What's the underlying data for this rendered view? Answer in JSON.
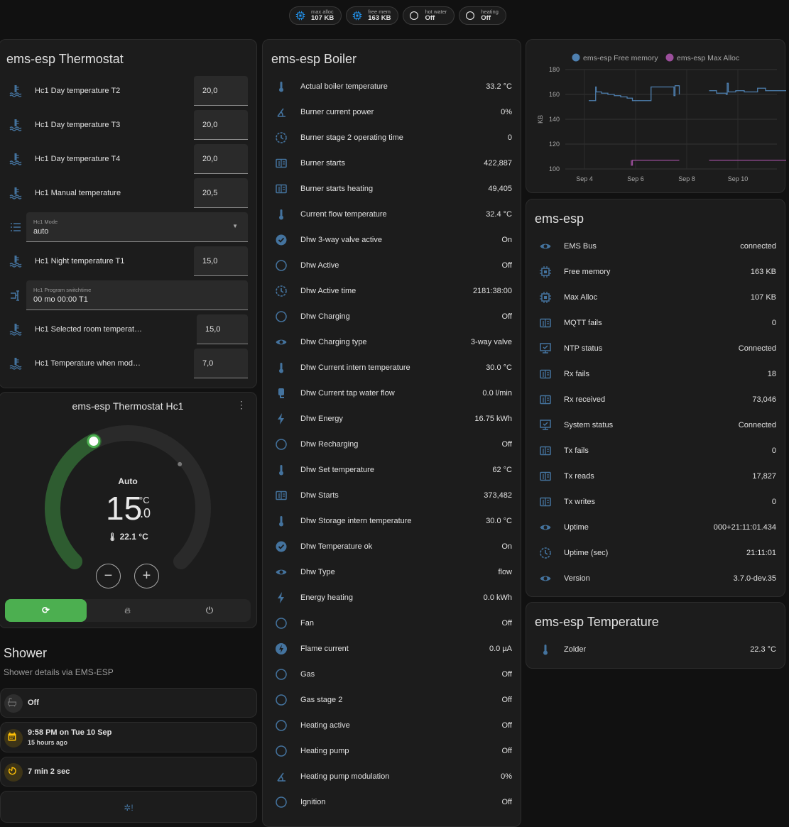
{
  "chips": [
    {
      "icon": "chip-icon",
      "label": "max alloc",
      "value": "107 KB",
      "color": "#2196f3"
    },
    {
      "icon": "chip-icon",
      "label": "free mem",
      "value": "163 KB",
      "color": "#2196f3"
    },
    {
      "icon": "circle-outline-icon",
      "label": "hot water",
      "value": "Off",
      "color": "#e1e1e1"
    },
    {
      "icon": "circle-outline-icon",
      "label": "heating",
      "value": "Off",
      "color": "#e1e1e1"
    }
  ],
  "thermostat": {
    "title": "ems-esp Thermostat",
    "rows": [
      {
        "type": "number",
        "icon": "water-thermometer-icon",
        "label": "Hc1 Day temperature T2",
        "value": "20,0"
      },
      {
        "type": "number",
        "icon": "water-thermometer-icon",
        "label": "Hc1 Day temperature T3",
        "value": "20,0"
      },
      {
        "type": "number",
        "icon": "water-thermometer-icon",
        "label": "Hc1 Day temperature T4",
        "value": "20,0"
      },
      {
        "type": "number",
        "icon": "water-thermometer-icon",
        "label": "Hc1 Manual temperature",
        "value": "20,5"
      },
      {
        "type": "select",
        "icon": "list-icon",
        "label": "Hc1 Mode",
        "value": "auto"
      },
      {
        "type": "number",
        "icon": "water-thermometer-icon",
        "label": "Hc1 Night temperature T1",
        "value": "15,0"
      },
      {
        "type": "text",
        "icon": "switch-time-icon",
        "label": "Hc1 Program switchtime",
        "value": "00 mo 00:00 T1"
      },
      {
        "type": "number",
        "icon": "water-thermometer-icon",
        "label": "Hc1 Selected room temperat…",
        "value": "15,0"
      },
      {
        "type": "number",
        "icon": "water-thermometer-icon",
        "label": "Hc1 Temperature when mod…",
        "value": "7,0"
      }
    ]
  },
  "climate": {
    "title": "ems-esp Thermostat Hc1",
    "mode": "Auto",
    "target_int": "15",
    "target_dec": ".0",
    "unit": "°C",
    "target": 15.0,
    "current": "22.1 °C",
    "current_value": 22.1,
    "accent": "#4caf50",
    "modes": [
      {
        "name": "auto",
        "icon": "thermostat-auto-icon",
        "active": true
      },
      {
        "name": "heat",
        "icon": "fire-icon",
        "active": false
      },
      {
        "name": "off",
        "icon": "power-icon",
        "active": false
      }
    ]
  },
  "shower": {
    "title": "Shower",
    "subtitle": "Shower details via EMS-ESP",
    "items": [
      {
        "icon": "bathtub-icon",
        "primary": "Off",
        "secondary": "",
        "color": "#6f6f6f"
      },
      {
        "icon": "calendar-icon",
        "primary": "9:58 PM on Tue 10 Sep",
        "secondary": "15 hours ago",
        "color": "#ffc107"
      },
      {
        "icon": "timer-icon",
        "primary": "7 min 2 sec",
        "secondary": "",
        "color": "#ffc107"
      }
    ],
    "last_icon": "water-alert-icon"
  },
  "boiler": {
    "title": "ems-esp Boiler",
    "rows": [
      {
        "icon": "thermometer-icon",
        "label": "Actual boiler temperature",
        "value": "33.2 °C"
      },
      {
        "icon": "angle-icon",
        "label": "Burner current power",
        "value": "0%"
      },
      {
        "icon": "clock-icon",
        "label": "Burner stage 2 operating time",
        "value": "0"
      },
      {
        "icon": "counter-icon",
        "label": "Burner starts",
        "value": "422,887"
      },
      {
        "icon": "counter-icon",
        "label": "Burner starts heating",
        "value": "49,405"
      },
      {
        "icon": "thermometer-icon",
        "label": "Current flow temperature",
        "value": "32.4 °C"
      },
      {
        "icon": "check-circle-icon",
        "label": "Dhw 3-way valve active",
        "value": "On"
      },
      {
        "icon": "circle-outline-icon",
        "label": "Dhw Active",
        "value": "Off"
      },
      {
        "icon": "clock-icon",
        "label": "Dhw Active time",
        "value": "2181:38:00"
      },
      {
        "icon": "circle-outline-icon",
        "label": "Dhw Charging",
        "value": "Off"
      },
      {
        "icon": "eye-icon",
        "label": "Dhw Charging type",
        "value": "3-way valve"
      },
      {
        "icon": "thermometer-icon",
        "label": "Dhw Current intern temperature",
        "value": "30.0 °C"
      },
      {
        "icon": "water-pump-icon",
        "label": "Dhw Current tap water flow",
        "value": "0.0 l/min"
      },
      {
        "icon": "flash-icon",
        "label": "Dhw Energy",
        "value": "16.75 kWh"
      },
      {
        "icon": "circle-outline-icon",
        "label": "Dhw Recharging",
        "value": "Off"
      },
      {
        "icon": "thermometer-icon",
        "label": "Dhw Set temperature",
        "value": "62 °C"
      },
      {
        "icon": "counter-icon",
        "label": "Dhw Starts",
        "value": "373,482"
      },
      {
        "icon": "thermometer-icon",
        "label": "Dhw Storage intern temperature",
        "value": "30.0 °C"
      },
      {
        "icon": "check-circle-icon",
        "label": "Dhw Temperature ok",
        "value": "On"
      },
      {
        "icon": "eye-icon",
        "label": "Dhw Type",
        "value": "flow"
      },
      {
        "icon": "flash-icon",
        "label": "Energy heating",
        "value": "0.0 kWh"
      },
      {
        "icon": "circle-outline-icon",
        "label": "Fan",
        "value": "Off"
      },
      {
        "icon": "flash-circle-icon",
        "label": "Flame current",
        "value": "0.0 µA"
      },
      {
        "icon": "circle-outline-icon",
        "label": "Gas",
        "value": "Off"
      },
      {
        "icon": "circle-outline-icon",
        "label": "Gas stage 2",
        "value": "Off"
      },
      {
        "icon": "circle-outline-icon",
        "label": "Heating active",
        "value": "Off"
      },
      {
        "icon": "circle-outline-icon",
        "label": "Heating pump",
        "value": "Off"
      },
      {
        "icon": "angle-icon",
        "label": "Heating pump modulation",
        "value": "0%"
      },
      {
        "icon": "circle-outline-icon",
        "label": "Ignition",
        "value": "Off"
      }
    ]
  },
  "chart_data": {
    "type": "line",
    "ylabel": "KB",
    "ylim": [
      100,
      180
    ],
    "yticks": [
      "100",
      "120",
      "140",
      "160",
      "180"
    ],
    "xticks": [
      "Sep 4",
      "Sep 6",
      "Sep 8",
      "Sep 10"
    ],
    "grid": true,
    "legend": "top",
    "series": [
      {
        "name": "ems-esp Free memory",
        "color": "#4f80b0",
        "segments": [
          [
            [
              "Sep 4 04:00",
              155
            ],
            [
              "Sep 4 10:30",
              155
            ],
            [
              "Sep 4 10:30",
              166
            ],
            [
              "Sep 4 11:00",
              162
            ],
            [
              "Sep 4 16:00",
              161
            ],
            [
              "Sep 4 22:00",
              160
            ],
            [
              "Sep 5 04:00",
              159
            ],
            [
              "Sep 5 10:00",
              158
            ],
            [
              "Sep 5 16:00",
              157
            ],
            [
              "Sep 5 21:00",
              155
            ],
            [
              "Sep 6 14:00",
              155
            ],
            [
              "Sep 6 14:30",
              166
            ],
            [
              "Sep 7 12:00",
              166
            ],
            [
              "Sep 7 12:00",
              159
            ],
            [
              "Sep 7 13:00",
              167
            ],
            [
              "Sep 7 17:00",
              167
            ],
            [
              "Sep 7 17:00",
              160
            ]
          ],
          [
            [
              "Sep 8 21:00",
              163
            ],
            [
              "Sep 9 04:00",
              161
            ],
            [
              "Sep 9 12:00",
              161
            ],
            [
              "Sep 9 13:00",
              160
            ],
            [
              "Sep 9 14:00",
              169
            ],
            [
              "Sep 9 15:00",
              162
            ],
            [
              "Sep 9 22:00",
              163
            ],
            [
              "Sep 10 04:00",
              163
            ],
            [
              "Sep 10 06:00",
              162
            ],
            [
              "Sep 10 18:00",
              162
            ],
            [
              "Sep 10 18:30",
              165
            ],
            [
              "Sep 11 00:00",
              165
            ],
            [
              "Sep 11 02:00",
              163
            ],
            [
              "Sep 11 23:00",
              163
            ]
          ]
        ]
      },
      {
        "name": "ems-esp Max Alloc",
        "color": "#9c4f9c",
        "segments": [
          [
            [
              "Sep 5 20:00",
              107
            ],
            [
              "Sep 5 20:00",
              103
            ],
            [
              "Sep 5 21:00",
              107
            ],
            [
              "Sep 7 17:00",
              107
            ]
          ],
          [
            [
              "Sep 8 21:00",
              107
            ],
            [
              "Sep 11 23:00",
              107
            ]
          ]
        ]
      }
    ]
  },
  "system": {
    "title": "ems-esp",
    "rows": [
      {
        "icon": "eye-icon",
        "label": "EMS Bus",
        "value": "connected"
      },
      {
        "icon": "chip-icon",
        "label": "Free memory",
        "value": "163 KB"
      },
      {
        "icon": "chip-icon",
        "label": "Max Alloc",
        "value": "107 KB"
      },
      {
        "icon": "counter-icon",
        "label": "MQTT fails",
        "value": "0"
      },
      {
        "icon": "monitor-check-icon",
        "label": "NTP status",
        "value": "Connected"
      },
      {
        "icon": "counter-icon",
        "label": "Rx fails",
        "value": "18"
      },
      {
        "icon": "counter-icon",
        "label": "Rx received",
        "value": "73,046"
      },
      {
        "icon": "monitor-check-icon",
        "label": "System status",
        "value": "Connected"
      },
      {
        "icon": "counter-icon",
        "label": "Tx fails",
        "value": "0"
      },
      {
        "icon": "counter-icon",
        "label": "Tx reads",
        "value": "17,827"
      },
      {
        "icon": "counter-icon",
        "label": "Tx writes",
        "value": "0"
      },
      {
        "icon": "eye-icon",
        "label": "Uptime",
        "value": "000+21:11:01.434"
      },
      {
        "icon": "clock-icon",
        "label": "Uptime (sec)",
        "value": "21:11:01"
      },
      {
        "icon": "eye-icon",
        "label": "Version",
        "value": "3.7.0-dev.35"
      }
    ]
  },
  "temperature": {
    "title": "ems-esp Temperature",
    "rows": [
      {
        "icon": "thermometer-icon",
        "label": "Zolder",
        "value": "22.3 °C"
      }
    ]
  }
}
